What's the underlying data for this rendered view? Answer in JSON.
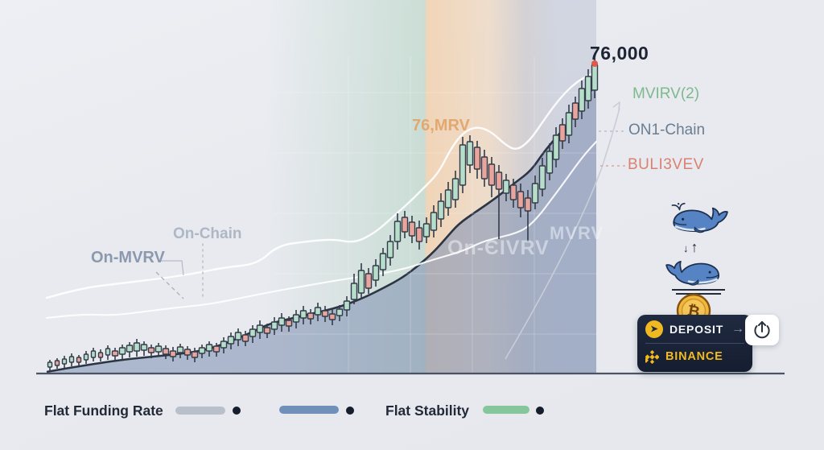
{
  "chart_data": {
    "type": "candlestick",
    "title": "76,000",
    "labels": {
      "peak_price": "76,000",
      "line_green": "MVIRV(2)",
      "line_slate": "ON1-Chain",
      "line_coral": "BULI3VEV",
      "zone_orange": "76,MRV",
      "callout_upper": "On-Chain",
      "callout_lower": "On-MVRV",
      "watermark_left": "On-ЄIVRV",
      "watermark_right": "MVRV"
    },
    "colors": {
      "bull": "#b7decb",
      "bear": "#e9a49d",
      "outline": "#333c49",
      "area_fill": "rgba(134,150,182,0.60)",
      "area_line": "#2c3544",
      "zone_green": "rgba(171,207,186,0.50)",
      "zone_orange": "rgba(246,199,148,0.62)",
      "zone_band": "rgba(164,173,197,0.34)",
      "white_line": "rgba(255,255,255,0.90)",
      "grid": "rgba(255,255,255,0.22)",
      "axis": "#4b5464",
      "accent_green": "#7eb98e",
      "accent_slate": "#6b7d91",
      "accent_coral": "#d98173",
      "accent_orange": "#e2a86f",
      "callout_upper_color": "#aeb7c5",
      "callout_lower_color": "#8b99ae",
      "peak_dot": "#e0584a"
    },
    "x_range": [
      58,
      741
    ],
    "y_axis": 464,
    "candles": [
      [
        62,
        450,
        456,
        447,
        460,
        "g"
      ],
      [
        71,
        448,
        454,
        445,
        458,
        "r"
      ],
      [
        80,
        446,
        452,
        442,
        457,
        "g"
      ],
      [
        89,
        443,
        450,
        439,
        455,
        "g"
      ],
      [
        98,
        444,
        450,
        441,
        454,
        "r"
      ],
      [
        107,
        440,
        447,
        436,
        452,
        "g"
      ],
      [
        116,
        436,
        444,
        432,
        449,
        "g"
      ],
      [
        125,
        438,
        444,
        434,
        449,
        "r"
      ],
      [
        134,
        433,
        441,
        429,
        447,
        "g"
      ],
      [
        143,
        436,
        442,
        432,
        448,
        "r"
      ],
      [
        152,
        432,
        440,
        428,
        446,
        "g"
      ],
      [
        161,
        429,
        437,
        425,
        444,
        "g"
      ],
      [
        170,
        426,
        436,
        421,
        443,
        "g"
      ],
      [
        179,
        428,
        435,
        424,
        442,
        "g"
      ],
      [
        188,
        432,
        438,
        428,
        445,
        "r"
      ],
      [
        197,
        430,
        437,
        426,
        443,
        "g"
      ],
      [
        206,
        433,
        440,
        429,
        446,
        "r"
      ],
      [
        215,
        436,
        443,
        431,
        449,
        "r"
      ],
      [
        224,
        431,
        438,
        427,
        445,
        "g"
      ],
      [
        233,
        434,
        441,
        430,
        447,
        "r"
      ],
      [
        242,
        437,
        444,
        432,
        450,
        "r"
      ],
      [
        251,
        432,
        439,
        428,
        445,
        "g"
      ],
      [
        260,
        428,
        436,
        424,
        443,
        "g"
      ],
      [
        269,
        430,
        437,
        426,
        443,
        "r"
      ],
      [
        278,
        424,
        432,
        419,
        439,
        "g"
      ],
      [
        287,
        418,
        427,
        413,
        434,
        "g"
      ],
      [
        296,
        413,
        422,
        408,
        430,
        "g"
      ],
      [
        305,
        416,
        424,
        411,
        430,
        "r"
      ],
      [
        314,
        409,
        418,
        404,
        426,
        "g"
      ],
      [
        323,
        404,
        413,
        398,
        421,
        "g"
      ],
      [
        332,
        407,
        414,
        402,
        420,
        "r"
      ],
      [
        341,
        400,
        409,
        394,
        416,
        "g"
      ],
      [
        350,
        395,
        404,
        389,
        412,
        "g"
      ],
      [
        359,
        398,
        405,
        393,
        412,
        "r"
      ],
      [
        368,
        391,
        400,
        385,
        408,
        "g"
      ],
      [
        377,
        386,
        395,
        380,
        403,
        "g"
      ],
      [
        386,
        389,
        396,
        384,
        403,
        "r"
      ],
      [
        395,
        382,
        391,
        376,
        399,
        "g"
      ],
      [
        404,
        386,
        393,
        380,
        400,
        "r"
      ],
      [
        413,
        390,
        397,
        384,
        404,
        "r"
      ],
      [
        422,
        384,
        392,
        379,
        399,
        "g"
      ],
      [
        431,
        374,
        385,
        368,
        393,
        "g"
      ],
      [
        440,
        352,
        372,
        340,
        378,
        "g"
      ],
      [
        449,
        336,
        364,
        327,
        372,
        "g"
      ],
      [
        458,
        340,
        358,
        333,
        365,
        "r"
      ],
      [
        467,
        330,
        348,
        322,
        356,
        "g"
      ],
      [
        476,
        315,
        335,
        308,
        343,
        "g"
      ],
      [
        485,
        300,
        320,
        292,
        330,
        "g"
      ],
      [
        494,
        275,
        300,
        265,
        310,
        "g"
      ],
      [
        503,
        270,
        288,
        262,
        296,
        "r"
      ],
      [
        512,
        276,
        293,
        268,
        302,
        "r"
      ],
      [
        521,
        283,
        300,
        274,
        310,
        "r"
      ],
      [
        530,
        278,
        294,
        270,
        302,
        "g"
      ],
      [
        539,
        264,
        286,
        255,
        295,
        "g"
      ],
      [
        548,
        250,
        272,
        240,
        282,
        "g"
      ],
      [
        557,
        236,
        258,
        226,
        268,
        "g"
      ],
      [
        566,
        222,
        248,
        212,
        258,
        "g"
      ],
      [
        575,
        180,
        230,
        170,
        240,
        "g"
      ],
      [
        584,
        176,
        205,
        168,
        215,
        "g"
      ],
      [
        593,
        183,
        210,
        175,
        222,
        "r"
      ],
      [
        602,
        195,
        222,
        186,
        232,
        "r"
      ],
      [
        611,
        204,
        230,
        195,
        245,
        "r"
      ],
      [
        620,
        214,
        235,
        205,
        297,
        "r"
      ],
      [
        629,
        224,
        240,
        216,
        250,
        "g"
      ],
      [
        638,
        230,
        248,
        222,
        258,
        "r"
      ],
      [
        647,
        238,
        258,
        228,
        270,
        "r"
      ],
      [
        656,
        246,
        262,
        236,
        300,
        "r"
      ],
      [
        665,
        228,
        252,
        218,
        260,
        "g"
      ],
      [
        674,
        206,
        235,
        196,
        244,
        "g"
      ],
      [
        683,
        188,
        215,
        178,
        224,
        "g"
      ],
      [
        691,
        168,
        198,
        158,
        208,
        "g"
      ],
      [
        699,
        155,
        175,
        147,
        185,
        "r"
      ],
      [
        707,
        140,
        168,
        130,
        178,
        "g"
      ],
      [
        715,
        128,
        148,
        120,
        158,
        "r"
      ],
      [
        723,
        110,
        138,
        100,
        148,
        "g"
      ],
      [
        731,
        95,
        125,
        86,
        135,
        "g"
      ],
      [
        739,
        80,
        112,
        72,
        122,
        "g"
      ]
    ],
    "baseline": [
      [
        58,
        462
      ],
      [
        80,
        458
      ],
      [
        105,
        454
      ],
      [
        130,
        450
      ],
      [
        160,
        446
      ],
      [
        190,
        443
      ],
      [
        220,
        440
      ],
      [
        250,
        436
      ],
      [
        280,
        427
      ],
      [
        310,
        414
      ],
      [
        335,
        402
      ],
      [
        360,
        396
      ],
      [
        390,
        389
      ],
      [
        420,
        382
      ],
      [
        450,
        371
      ],
      [
        480,
        356
      ],
      [
        500,
        345
      ],
      [
        520,
        330
      ],
      [
        540,
        312
      ],
      [
        555,
        295
      ],
      [
        570,
        278
      ],
      [
        590,
        264
      ],
      [
        615,
        247
      ],
      [
        640,
        227
      ],
      [
        660,
        212
      ],
      [
        675,
        190
      ],
      [
        690,
        172
      ],
      [
        705,
        155
      ],
      [
        720,
        132
      ],
      [
        735,
        112
      ],
      [
        741,
        104
      ]
    ],
    "white_lines": [
      [
        [
          58,
          370
        ],
        [
          100,
          358
        ],
        [
          150,
          352
        ],
        [
          200,
          346
        ],
        [
          240,
          340
        ],
        [
          280,
          332
        ],
        [
          320,
          328
        ],
        [
          345,
          305
        ],
        [
          380,
          300
        ],
        [
          415,
          297
        ],
        [
          440,
          302
        ],
        [
          465,
          290
        ],
        [
          490,
          268
        ],
        [
          510,
          250
        ],
        [
          525,
          235
        ],
        [
          545,
          215
        ],
        [
          560,
          185
        ],
        [
          575,
          165
        ],
        [
          592,
          157
        ],
        [
          610,
          163
        ],
        [
          628,
          180
        ],
        [
          642,
          187
        ],
        [
          658,
          175
        ],
        [
          672,
          155
        ],
        [
          688,
          132
        ],
        [
          705,
          112
        ],
        [
          722,
          98
        ],
        [
          740,
          90
        ]
      ],
      [
        [
          58,
          395
        ],
        [
          100,
          390
        ],
        [
          140,
          392
        ],
        [
          180,
          387
        ],
        [
          220,
          382
        ],
        [
          260,
          378
        ],
        [
          300,
          370
        ],
        [
          340,
          362
        ],
        [
          380,
          355
        ],
        [
          420,
          348
        ],
        [
          460,
          342
        ],
        [
          500,
          335
        ],
        [
          540,
          322
        ],
        [
          575,
          312
        ],
        [
          600,
          300
        ],
        [
          620,
          295
        ],
        [
          640,
          290
        ],
        [
          655,
          283
        ],
        [
          670,
          268
        ],
        [
          685,
          248
        ],
        [
          700,
          228
        ],
        [
          715,
          207
        ],
        [
          728,
          190
        ],
        [
          741,
          176
        ]
      ]
    ],
    "grid": {
      "verticals": [
        433,
        510,
        587,
        664
      ],
      "horizontals": [
        115,
        190,
        265,
        340,
        415
      ]
    }
  },
  "widgets": {
    "deposit_card": {
      "deposit_label": "DEPOSIT",
      "binance_label": "BINANCE"
    },
    "icons": {
      "btc_symbol": "₿",
      "arrow_right": "→",
      "down_arrow": "↓",
      "up_arrow": "↑",
      "deposit_glyph": "➤"
    }
  },
  "legend": {
    "funding_label": "Flat Funding Rate",
    "stability_label": "Flat Stability",
    "pills": [
      {
        "name": "funding-rate-gray",
        "color": "#b9c0cb"
      },
      {
        "name": "funding-rate-blue",
        "color": "#7090ba"
      },
      {
        "name": "stability-green",
        "color": "#85c79a"
      }
    ]
  }
}
